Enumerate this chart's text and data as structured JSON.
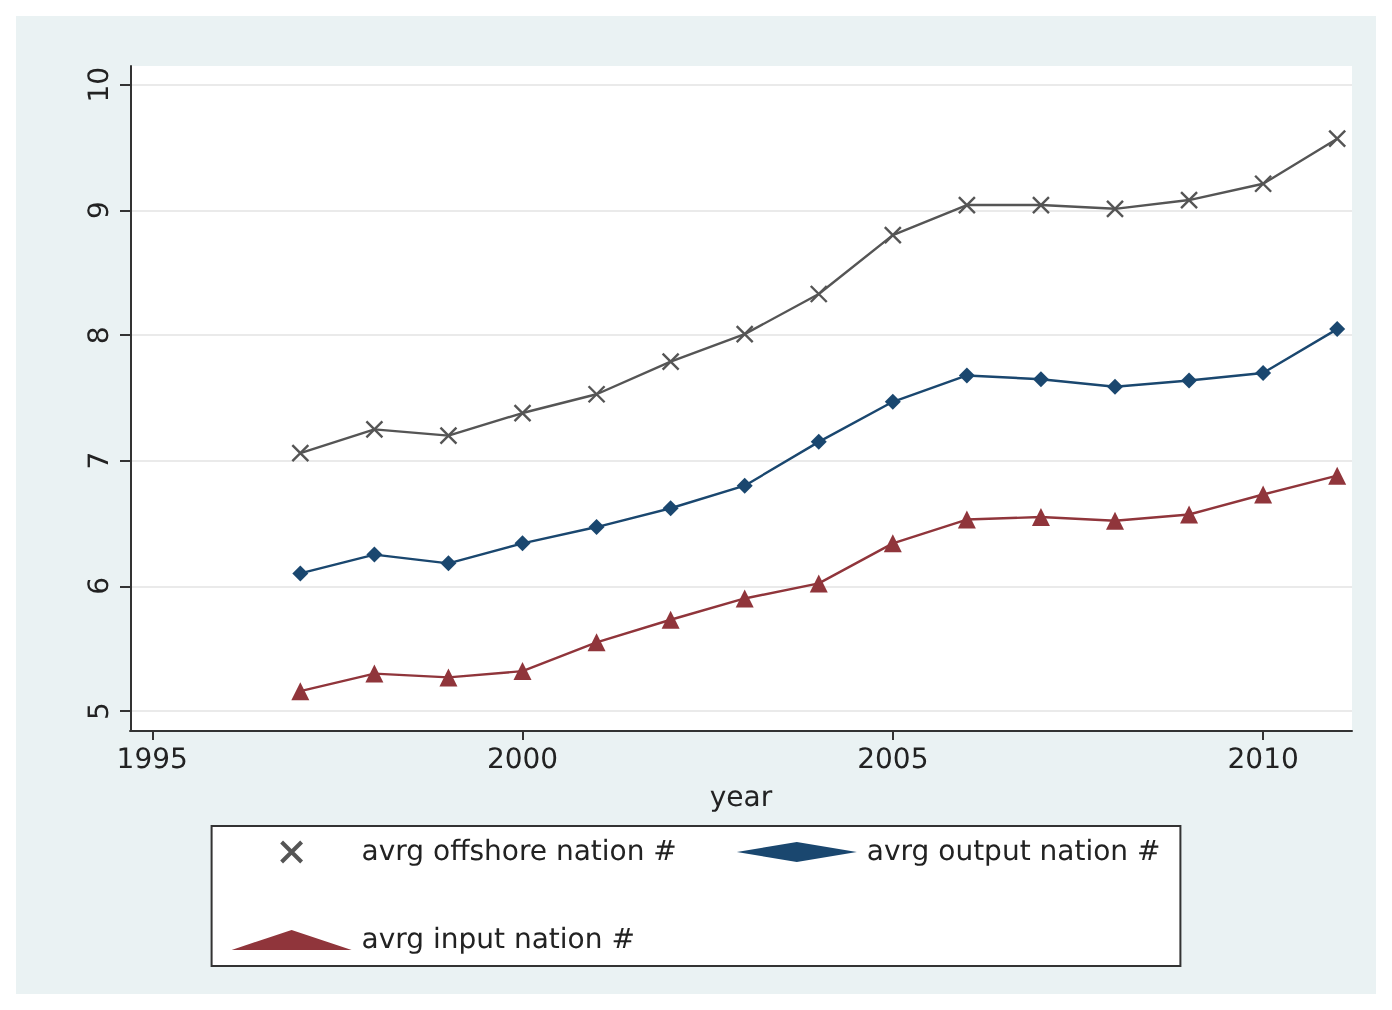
{
  "chart_data": {
    "type": "line",
    "xlabel": "year",
    "x": [
      1997,
      1998,
      1999,
      2000,
      2001,
      2002,
      2003,
      2004,
      2005,
      2006,
      2007,
      2008,
      2009,
      2010,
      2011
    ],
    "xlim": [
      1994.7,
      2011.2
    ],
    "xticks": [
      1995,
      2000,
      2005,
      2010
    ],
    "ylim": [
      4.85,
      10.15
    ],
    "yticks": [
      5,
      6,
      7,
      8,
      9,
      10
    ],
    "grid": "y",
    "legend": "bottom",
    "line_style": "solid",
    "series": [
      {
        "name": "avrg offshore nation #",
        "color": "#555555",
        "marker": "cross",
        "values": [
          7.06,
          7.25,
          7.2,
          7.38,
          7.53,
          7.79,
          8.01,
          8.33,
          8.8,
          9.04,
          9.04,
          9.01,
          9.08,
          9.21,
          9.57
        ]
      },
      {
        "name": "avrg output nation #",
        "color": "#1a476f",
        "marker": "diamond",
        "values": [
          6.1,
          6.25,
          6.18,
          6.34,
          6.47,
          6.62,
          6.8,
          7.15,
          7.47,
          7.68,
          7.65,
          7.59,
          7.64,
          7.7,
          8.05
        ]
      },
      {
        "name": "avrg input nation #",
        "color": "#90353b",
        "marker": "triangle",
        "values": [
          5.16,
          5.3,
          5.27,
          5.32,
          5.55,
          5.73,
          5.9,
          6.02,
          6.34,
          6.53,
          6.55,
          6.52,
          6.57,
          6.73,
          6.88
        ]
      }
    ]
  }
}
